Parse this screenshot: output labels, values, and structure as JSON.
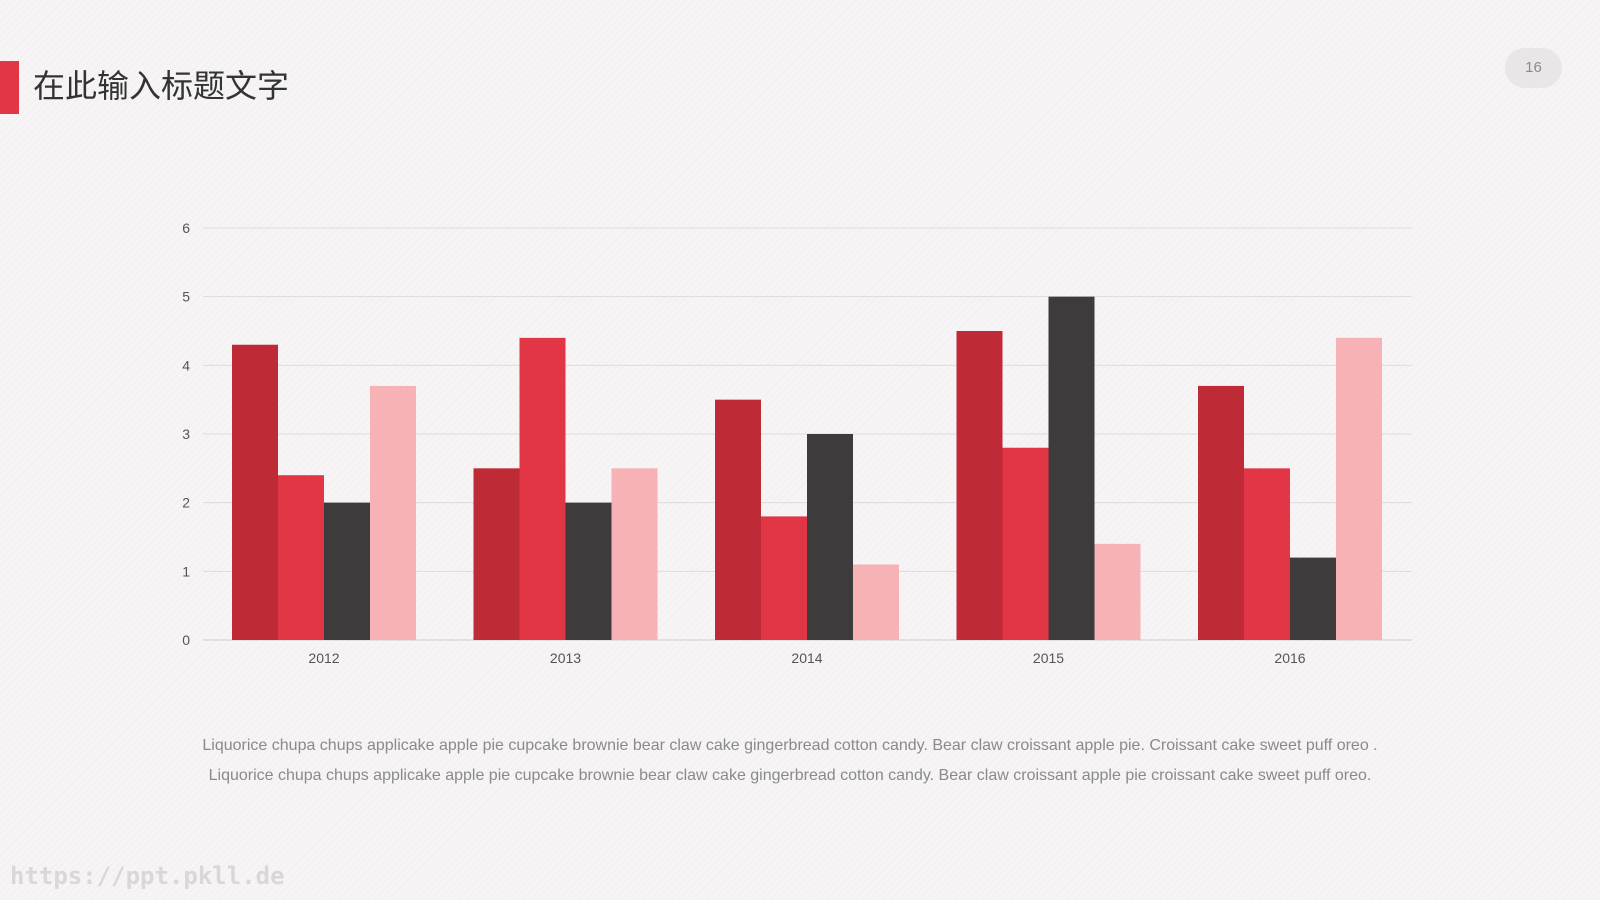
{
  "header": {
    "title": "在此输入标题文字",
    "page_number": "16"
  },
  "colors": {
    "accent": "#e23646",
    "series": [
      "#bf2a37",
      "#e23646",
      "#3d3b3c",
      "#f6b2b4"
    ]
  },
  "chart_data": {
    "type": "bar",
    "categories": [
      "2012",
      "2013",
      "2014",
      "2015",
      "2016"
    ],
    "series": [
      {
        "values": [
          4.3,
          2.5,
          3.5,
          4.5,
          3.7
        ]
      },
      {
        "values": [
          2.4,
          4.4,
          1.8,
          2.8,
          2.5
        ]
      },
      {
        "values": [
          2.0,
          2.0,
          3.0,
          5.0,
          1.2
        ]
      },
      {
        "values": [
          3.7,
          2.5,
          1.1,
          1.4,
          4.4
        ]
      }
    ],
    "ylim": [
      0,
      6
    ],
    "yticks": [
      0,
      1,
      2,
      3,
      4,
      5,
      6
    ],
    "grid": true,
    "legend": "none"
  },
  "captions": [
    "Liquorice chupa chups applicake apple pie cupcake brownie bear claw  cake gingerbread cotton candy. Bear claw croissant apple pie. Croissant cake sweet puff oreo .",
    "Liquorice chupa chups applicake apple pie cupcake brownie bear claw  cake gingerbread cotton candy. Bear claw croissant apple pie croissant cake sweet puff oreo."
  ],
  "watermark": "https://ppt.pkll.de"
}
